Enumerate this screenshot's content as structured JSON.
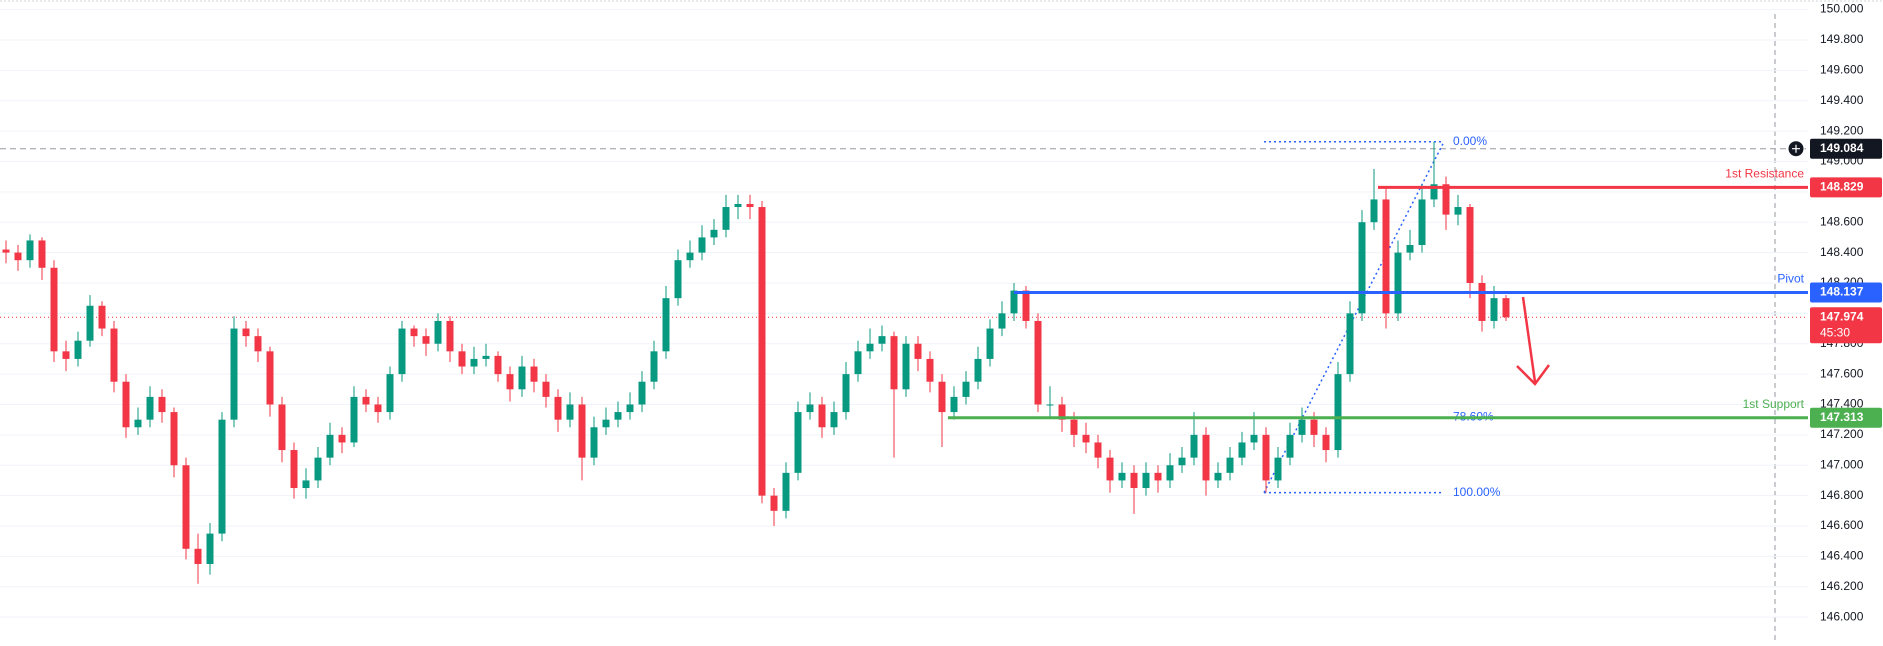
{
  "chart_data": {
    "type": "candlestick",
    "up_color": "#089981",
    "down_color": "#f23645",
    "grid": true,
    "ylim": [
      145.81,
      150.063
    ],
    "yticks": [
      {
        "value": 146.0,
        "label": "146.000"
      },
      {
        "value": 146.2,
        "label": "146.200"
      },
      {
        "value": 146.4,
        "label": "146.400"
      },
      {
        "value": 146.6,
        "label": "146.600"
      },
      {
        "value": 146.8,
        "label": "146.800"
      },
      {
        "value": 147.0,
        "label": "147.000"
      },
      {
        "value": 147.2,
        "label": "147.200"
      },
      {
        "value": 147.4,
        "label": "147.400"
      },
      {
        "value": 147.6,
        "label": "147.600"
      },
      {
        "value": 147.8,
        "label": "147.800"
      },
      {
        "value": 148.0,
        "label": "148.000"
      },
      {
        "value": 148.2,
        "label": "148.200"
      },
      {
        "value": 148.4,
        "label": "148.400"
      },
      {
        "value": 148.6,
        "label": "148.600"
      },
      {
        "value": 148.8,
        "label": "148.800"
      },
      {
        "value": 149.0,
        "label": "149.000"
      },
      {
        "value": 149.2,
        "label": "149.200"
      },
      {
        "value": 149.4,
        "label": "149.400"
      },
      {
        "value": 149.6,
        "label": "149.600"
      },
      {
        "value": 149.8,
        "label": "149.800"
      },
      {
        "value": 150.0,
        "label": "150.000"
      }
    ],
    "candles": [
      [
        148.42,
        148.48,
        148.33,
        148.4
      ],
      [
        148.4,
        148.45,
        148.28,
        148.35
      ],
      [
        148.35,
        148.52,
        148.3,
        148.48
      ],
      [
        148.48,
        148.5,
        148.22,
        148.3
      ],
      [
        148.3,
        148.35,
        147.68,
        147.75
      ],
      [
        147.75,
        147.82,
        147.62,
        147.7
      ],
      [
        147.7,
        147.88,
        147.65,
        147.82
      ],
      [
        147.82,
        148.12,
        147.78,
        148.05
      ],
      [
        148.05,
        148.08,
        147.85,
        147.9
      ],
      [
        147.9,
        147.95,
        147.48,
        147.55
      ],
      [
        147.55,
        147.6,
        147.18,
        147.25
      ],
      [
        147.25,
        147.38,
        147.2,
        147.3
      ],
      [
        147.3,
        147.52,
        147.25,
        147.45
      ],
      [
        147.45,
        147.5,
        147.28,
        147.35
      ],
      [
        147.35,
        147.38,
        146.92,
        147.0
      ],
      [
        147.0,
        147.05,
        146.38,
        146.45
      ],
      [
        146.45,
        146.55,
        146.22,
        146.35
      ],
      [
        146.35,
        146.62,
        146.28,
        146.55
      ],
      [
        146.55,
        147.35,
        146.5,
        147.3
      ],
      [
        147.3,
        147.98,
        147.25,
        147.9
      ],
      [
        147.9,
        147.95,
        147.78,
        147.85
      ],
      [
        147.85,
        147.9,
        147.68,
        147.75
      ],
      [
        147.75,
        147.78,
        147.32,
        147.4
      ],
      [
        147.4,
        147.45,
        147.02,
        147.1
      ],
      [
        147.1,
        147.15,
        146.78,
        146.85
      ],
      [
        146.85,
        146.98,
        146.78,
        146.9
      ],
      [
        146.9,
        147.12,
        146.85,
        147.05
      ],
      [
        147.05,
        147.28,
        147.0,
        147.2
      ],
      [
        147.2,
        147.25,
        147.08,
        147.15
      ],
      [
        147.15,
        147.52,
        147.12,
        147.45
      ],
      [
        147.45,
        147.5,
        147.35,
        147.4
      ],
      [
        147.4,
        147.45,
        147.28,
        147.35
      ],
      [
        147.35,
        147.65,
        147.3,
        147.6
      ],
      [
        147.6,
        147.95,
        147.55,
        147.9
      ],
      [
        147.9,
        147.92,
        147.78,
        147.85
      ],
      [
        147.85,
        147.9,
        147.72,
        147.8
      ],
      [
        147.8,
        148.0,
        147.75,
        147.95
      ],
      [
        147.95,
        147.98,
        147.68,
        147.75
      ],
      [
        147.75,
        147.8,
        147.6,
        147.65
      ],
      [
        147.65,
        147.78,
        147.6,
        147.7
      ],
      [
        147.7,
        147.8,
        147.65,
        147.72
      ],
      [
        147.72,
        147.75,
        147.55,
        147.6
      ],
      [
        147.6,
        147.65,
        147.42,
        147.5
      ],
      [
        147.5,
        147.72,
        147.45,
        147.65
      ],
      [
        147.65,
        147.7,
        147.48,
        147.55
      ],
      [
        147.55,
        147.6,
        147.38,
        147.45
      ],
      [
        147.45,
        147.5,
        147.22,
        147.3
      ],
      [
        147.3,
        147.48,
        147.25,
        147.4
      ],
      [
        147.4,
        147.45,
        146.9,
        147.05
      ],
      [
        147.05,
        147.32,
        147.0,
        147.25
      ],
      [
        147.25,
        147.38,
        147.2,
        147.3
      ],
      [
        147.3,
        147.42,
        147.25,
        147.35
      ],
      [
        147.35,
        147.48,
        147.3,
        147.4
      ],
      [
        147.4,
        147.62,
        147.35,
        147.55
      ],
      [
        147.55,
        147.82,
        147.5,
        147.75
      ],
      [
        147.75,
        148.18,
        147.7,
        148.1
      ],
      [
        148.1,
        148.42,
        148.05,
        148.35
      ],
      [
        148.35,
        148.48,
        148.3,
        148.4
      ],
      [
        148.4,
        148.58,
        148.35,
        148.5
      ],
      [
        148.5,
        148.62,
        148.45,
        148.55
      ],
      [
        148.55,
        148.78,
        148.5,
        148.7
      ],
      [
        148.7,
        148.78,
        148.62,
        148.72
      ],
      [
        148.72,
        148.78,
        148.62,
        148.7
      ],
      [
        148.7,
        148.74,
        146.75,
        146.8
      ],
      [
        146.8,
        146.85,
        146.6,
        146.7
      ],
      [
        146.7,
        147.02,
        146.65,
        146.95
      ],
      [
        146.95,
        147.42,
        146.9,
        147.35
      ],
      [
        147.35,
        147.48,
        147.3,
        147.4
      ],
      [
        147.4,
        147.45,
        147.18,
        147.25
      ],
      [
        147.25,
        147.42,
        147.2,
        147.35
      ],
      [
        147.35,
        147.68,
        147.3,
        147.6
      ],
      [
        147.6,
        147.82,
        147.55,
        147.75
      ],
      [
        147.75,
        147.9,
        147.7,
        147.8
      ],
      [
        147.8,
        147.92,
        147.75,
        147.85
      ],
      [
        147.85,
        147.88,
        147.05,
        147.5
      ],
      [
        147.5,
        147.85,
        147.45,
        147.8
      ],
      [
        147.8,
        147.85,
        147.62,
        147.7
      ],
      [
        147.7,
        147.75,
        147.48,
        147.55
      ],
      [
        147.55,
        147.6,
        147.12,
        147.35
      ],
      [
        147.35,
        147.52,
        147.3,
        147.45
      ],
      [
        147.45,
        147.62,
        147.4,
        147.55
      ],
      [
        147.55,
        147.78,
        147.5,
        147.7
      ],
      [
        147.7,
        147.96,
        147.65,
        147.9
      ],
      [
        147.9,
        148.08,
        147.85,
        148.0
      ],
      [
        148.0,
        148.2,
        147.95,
        148.15
      ],
      [
        148.15,
        148.18,
        147.9,
        147.95
      ],
      [
        147.95,
        148.0,
        147.35,
        147.4
      ],
      [
        147.4,
        147.52,
        147.32,
        147.4
      ],
      [
        147.4,
        147.45,
        147.22,
        147.3
      ],
      [
        147.3,
        147.35,
        147.12,
        147.2
      ],
      [
        147.2,
        147.28,
        147.08,
        147.15
      ],
      [
        147.15,
        147.2,
        146.98,
        147.05
      ],
      [
        147.05,
        147.1,
        146.82,
        146.9
      ],
      [
        146.9,
        147.02,
        146.85,
        146.95
      ],
      [
        146.95,
        147.0,
        146.68,
        146.85
      ],
      [
        146.85,
        147.02,
        146.8,
        146.95
      ],
      [
        146.95,
        147.0,
        146.82,
        146.9
      ],
      [
        146.9,
        147.08,
        146.85,
        147.0
      ],
      [
        147.0,
        147.12,
        146.95,
        147.05
      ],
      [
        147.05,
        147.35,
        147.0,
        147.2
      ],
      [
        147.2,
        147.25,
        146.8,
        146.9
      ],
      [
        146.9,
        147.02,
        146.85,
        146.95
      ],
      [
        146.95,
        147.12,
        146.9,
        147.05
      ],
      [
        147.05,
        147.22,
        147.0,
        147.15
      ],
      [
        147.15,
        147.35,
        147.1,
        147.2
      ],
      [
        147.2,
        147.25,
        146.82,
        146.9
      ],
      [
        146.9,
        147.12,
        146.85,
        147.05
      ],
      [
        147.05,
        147.28,
        147.0,
        147.2
      ],
      [
        147.2,
        147.38,
        147.15,
        147.3
      ],
      [
        147.3,
        147.35,
        147.12,
        147.2
      ],
      [
        147.2,
        147.25,
        147.02,
        147.1
      ],
      [
        147.1,
        147.68,
        147.05,
        147.6
      ],
      [
        147.6,
        148.08,
        147.55,
        148.0
      ],
      [
        148.0,
        148.68,
        147.95,
        148.6
      ],
      [
        148.6,
        148.95,
        148.55,
        148.75
      ],
      [
        148.75,
        148.82,
        147.9,
        148.0
      ],
      [
        148.0,
        148.48,
        147.95,
        148.4
      ],
      [
        148.4,
        148.55,
        148.35,
        148.45
      ],
      [
        148.45,
        148.85,
        148.4,
        148.75
      ],
      [
        148.75,
        149.13,
        148.7,
        148.85
      ],
      [
        148.85,
        148.9,
        148.55,
        148.65
      ],
      [
        148.65,
        148.78,
        148.58,
        148.7
      ],
      [
        148.7,
        148.72,
        148.1,
        148.2
      ],
      [
        148.2,
        148.25,
        147.88,
        147.95
      ],
      [
        147.95,
        148.18,
        147.9,
        148.1
      ],
      [
        148.1,
        148.12,
        147.95,
        147.974
      ]
    ],
    "levels": [
      {
        "name": "1st Resistance",
        "value": 148.829,
        "color": "#f23645"
      },
      {
        "name": "Pivot",
        "value": 148.137,
        "color": "#2962ff"
      },
      {
        "name": "1st Support",
        "value": 147.313,
        "color": "#4caf50"
      }
    ],
    "last": {
      "value": 147.974,
      "countdown": "45:30",
      "color": "#f23645"
    },
    "crosshair": 149.084,
    "fib": {
      "high": 149.13,
      "low": 146.82,
      "color": "#2962ff",
      "levels": [
        {
          "value": 0,
          "label": "0.00%"
        },
        {
          "value": 78.6,
          "label": "78.60%"
        },
        {
          "value": 100,
          "label": "100.00%"
        }
      ]
    }
  }
}
